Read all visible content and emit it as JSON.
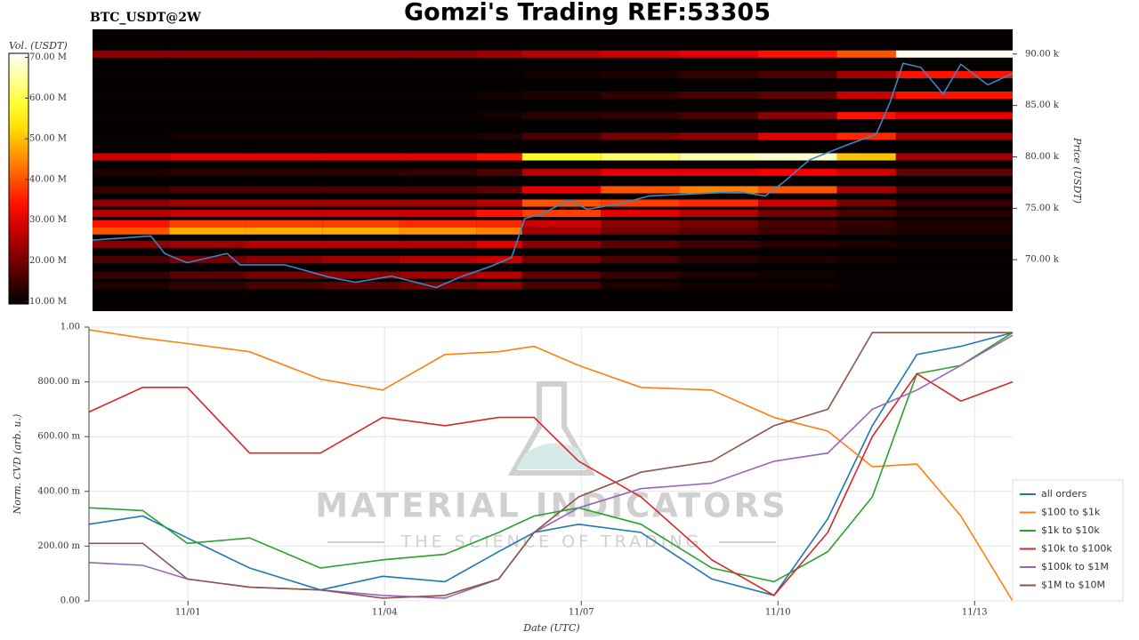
{
  "header": {
    "title": "Gomzi's Trading REF:53305",
    "symbol": "BTC_USDT@2W"
  },
  "watermark": {
    "brand": "MATERIAL INDICATORS",
    "tagline": "THE SCIENCE OF TRADING"
  },
  "chart_data": [
    {
      "type": "heatmap",
      "ylabel": "Price (USDT)",
      "xlim": [
        -0.45,
        13.58
      ],
      "ylim": [
        65000,
        92400
      ],
      "yticks": [
        {
          "value": 70000,
          "label": "70.00 k"
        },
        {
          "value": 75000,
          "label": "75.00 k"
        },
        {
          "value": 80000,
          "label": "80.00 k"
        },
        {
          "value": 85000,
          "label": "85.00 k"
        },
        {
          "value": 90000,
          "label": "90.00 k"
        }
      ],
      "x_bins": [
        -0.45,
        0.72,
        1.89,
        3.06,
        4.23,
        5.4,
        6.1,
        7.3,
        8.5,
        9.7,
        10.9,
        11.8,
        13.58
      ],
      "levels": [
        67500,
        68500,
        70000,
        71500,
        72800,
        73500,
        74500,
        75500,
        76800,
        78500,
        80000,
        82000,
        84000,
        86000,
        88000,
        90000
      ],
      "values": [
        [
          12,
          14,
          16,
          18,
          20,
          22,
          16,
          12,
          11,
          11,
          10,
          10
        ],
        [
          14,
          18,
          20,
          22,
          24,
          26,
          18,
          14,
          12,
          11,
          10,
          10
        ],
        [
          16,
          20,
          22,
          24,
          26,
          28,
          20,
          16,
          13,
          12,
          11,
          10
        ],
        [
          22,
          24,
          26,
          26,
          26,
          30,
          22,
          18,
          15,
          13,
          12,
          11
        ],
        [
          40,
          48,
          48,
          48,
          46,
          44,
          24,
          20,
          18,
          15,
          13,
          12
        ],
        [
          34,
          38,
          38,
          38,
          36,
          36,
          28,
          22,
          20,
          16,
          14,
          12
        ],
        [
          26,
          28,
          28,
          28,
          28,
          34,
          38,
          30,
          26,
          20,
          16,
          13
        ],
        [
          22,
          24,
          24,
          24,
          24,
          26,
          40,
          38,
          36,
          28,
          20,
          14
        ],
        [
          14,
          16,
          16,
          16,
          16,
          18,
          30,
          40,
          44,
          40,
          24,
          16
        ],
        [
          12,
          13,
          13,
          13,
          14,
          16,
          26,
          30,
          30,
          32,
          28,
          18
        ],
        [
          28,
          30,
          30,
          30,
          30,
          34,
          58,
          62,
          66,
          68,
          50,
          24
        ],
        [
          10,
          11,
          11,
          11,
          11,
          12,
          16,
          20,
          22,
          30,
          36,
          24
        ],
        [
          10,
          10,
          10,
          10,
          10,
          11,
          13,
          14,
          16,
          22,
          34,
          30
        ],
        [
          10,
          10,
          10,
          10,
          10,
          11,
          12,
          14,
          16,
          18,
          28,
          34
        ],
        [
          10,
          10,
          10,
          10,
          10,
          10,
          11,
          12,
          14,
          16,
          24,
          34
        ],
        [
          22,
          22,
          22,
          22,
          22,
          24,
          26,
          28,
          30,
          34,
          40,
          70
        ]
      ],
      "colorbar": {
        "label": "Vol. (USDT)",
        "clim": [
          9.4,
          71
        ],
        "ticks": [
          {
            "value": 10,
            "label": "10.00 M"
          },
          {
            "value": 20,
            "label": "20.00 M"
          },
          {
            "value": 30,
            "label": "30.00 M"
          },
          {
            "value": 40,
            "label": "40.00 M"
          },
          {
            "value": 50,
            "label": "50.00 M"
          },
          {
            "value": 60,
            "label": "60.00 M"
          },
          {
            "value": 70,
            "label": "70.00 M"
          }
        ]
      },
      "price": {
        "color": "#3a86c8",
        "x": [
          -0.45,
          0.44,
          0.65,
          0.99,
          1.6,
          1.8,
          2.48,
          3.16,
          3.56,
          4.11,
          4.79,
          5.19,
          5.6,
          5.94,
          6.14,
          6.41,
          6.82,
          7.09,
          7.63,
          8.04,
          8.72,
          9.4,
          9.81,
          10.08,
          10.48,
          11.03,
          11.5,
          11.71,
          11.91,
          12.18,
          12.52,
          12.79,
          13.2,
          13.58
        ],
        "values": [
          71900,
          72300,
          70600,
          69700,
          70600,
          69500,
          69500,
          68300,
          67800,
          68400,
          67300,
          68400,
          69300,
          70200,
          74000,
          74500,
          75800,
          74900,
          75500,
          76200,
          76400,
          76600,
          76200,
          77500,
          79700,
          81100,
          82200,
          85300,
          89100,
          88700,
          86100,
          89000,
          87000,
          88100
        ]
      }
    },
    {
      "type": "line",
      "xlabel": "Date (UTC)",
      "ylabel": "Norm. CVD (arb. u.)",
      "xlim": [
        -0.51,
        13.58
      ],
      "ylim": [
        0,
        1
      ],
      "xticks": [
        {
          "value": 1,
          "label": "11/01"
        },
        {
          "value": 4,
          "label": "11/04"
        },
        {
          "value": 7,
          "label": "11/07"
        },
        {
          "value": 10,
          "label": "11/10"
        },
        {
          "value": 13,
          "label": "11/13"
        }
      ],
      "yticks": [
        {
          "value": 0,
          "label": "0.00"
        },
        {
          "value": 0.2,
          "label": "200.00 m"
        },
        {
          "value": 0.4,
          "label": "400.00 m"
        },
        {
          "value": 0.6,
          "label": "600.00 m"
        },
        {
          "value": 0.8,
          "label": "800.00 m"
        },
        {
          "value": 1,
          "label": "1.00"
        }
      ],
      "grid": true,
      "legend": "lower right",
      "x": [
        -0.51,
        0.31,
        0.99,
        1.94,
        3.02,
        3.97,
        4.92,
        5.74,
        6.28,
        6.96,
        7.91,
        8.99,
        9.94,
        10.76,
        11.44,
        12.12,
        12.79,
        13.58
      ],
      "series": [
        {
          "name": "all orders",
          "color": "#1f77b4",
          "values": [
            0.28,
            0.31,
            0.23,
            0.12,
            0.04,
            0.09,
            0.07,
            0.18,
            0.25,
            0.28,
            0.25,
            0.08,
            0.02,
            0.3,
            0.64,
            0.9,
            0.93,
            0.98
          ]
        },
        {
          "name": "$100 to $1k",
          "color": "#ff7f0e",
          "values": [
            0.99,
            0.96,
            0.94,
            0.91,
            0.81,
            0.77,
            0.9,
            0.91,
            0.93,
            0.86,
            0.78,
            0.77,
            0.67,
            0.62,
            0.49,
            0.5,
            0.31,
            0.0
          ]
        },
        {
          "name": "$1k to $10k",
          "color": "#2ca02c",
          "values": [
            0.34,
            0.33,
            0.21,
            0.23,
            0.12,
            0.15,
            0.17,
            0.25,
            0.31,
            0.34,
            0.28,
            0.12,
            0.07,
            0.18,
            0.38,
            0.83,
            0.86,
            0.98
          ]
        },
        {
          "name": "$10k to $100k",
          "color": "#d62728",
          "values": [
            0.69,
            0.78,
            0.78,
            0.54,
            0.54,
            0.67,
            0.64,
            0.67,
            0.67,
            0.51,
            0.38,
            0.15,
            0.02,
            0.25,
            0.6,
            0.83,
            0.73,
            0.8
          ]
        },
        {
          "name": "$100k to $1M",
          "color": "#9467bd",
          "values": [
            0.14,
            0.13,
            0.08,
            0.05,
            0.04,
            0.02,
            0.01,
            0.08,
            0.25,
            0.34,
            0.41,
            0.43,
            0.51,
            0.54,
            0.7,
            0.77,
            0.86,
            0.97
          ]
        },
        {
          "name": "$1M to $10M",
          "color": "#8c564b",
          "values": [
            0.21,
            0.21,
            0.08,
            0.05,
            0.04,
            0.01,
            0.02,
            0.08,
            0.25,
            0.38,
            0.47,
            0.51,
            0.64,
            0.7,
            0.98,
            0.98,
            0.98,
            0.98
          ]
        }
      ]
    }
  ]
}
